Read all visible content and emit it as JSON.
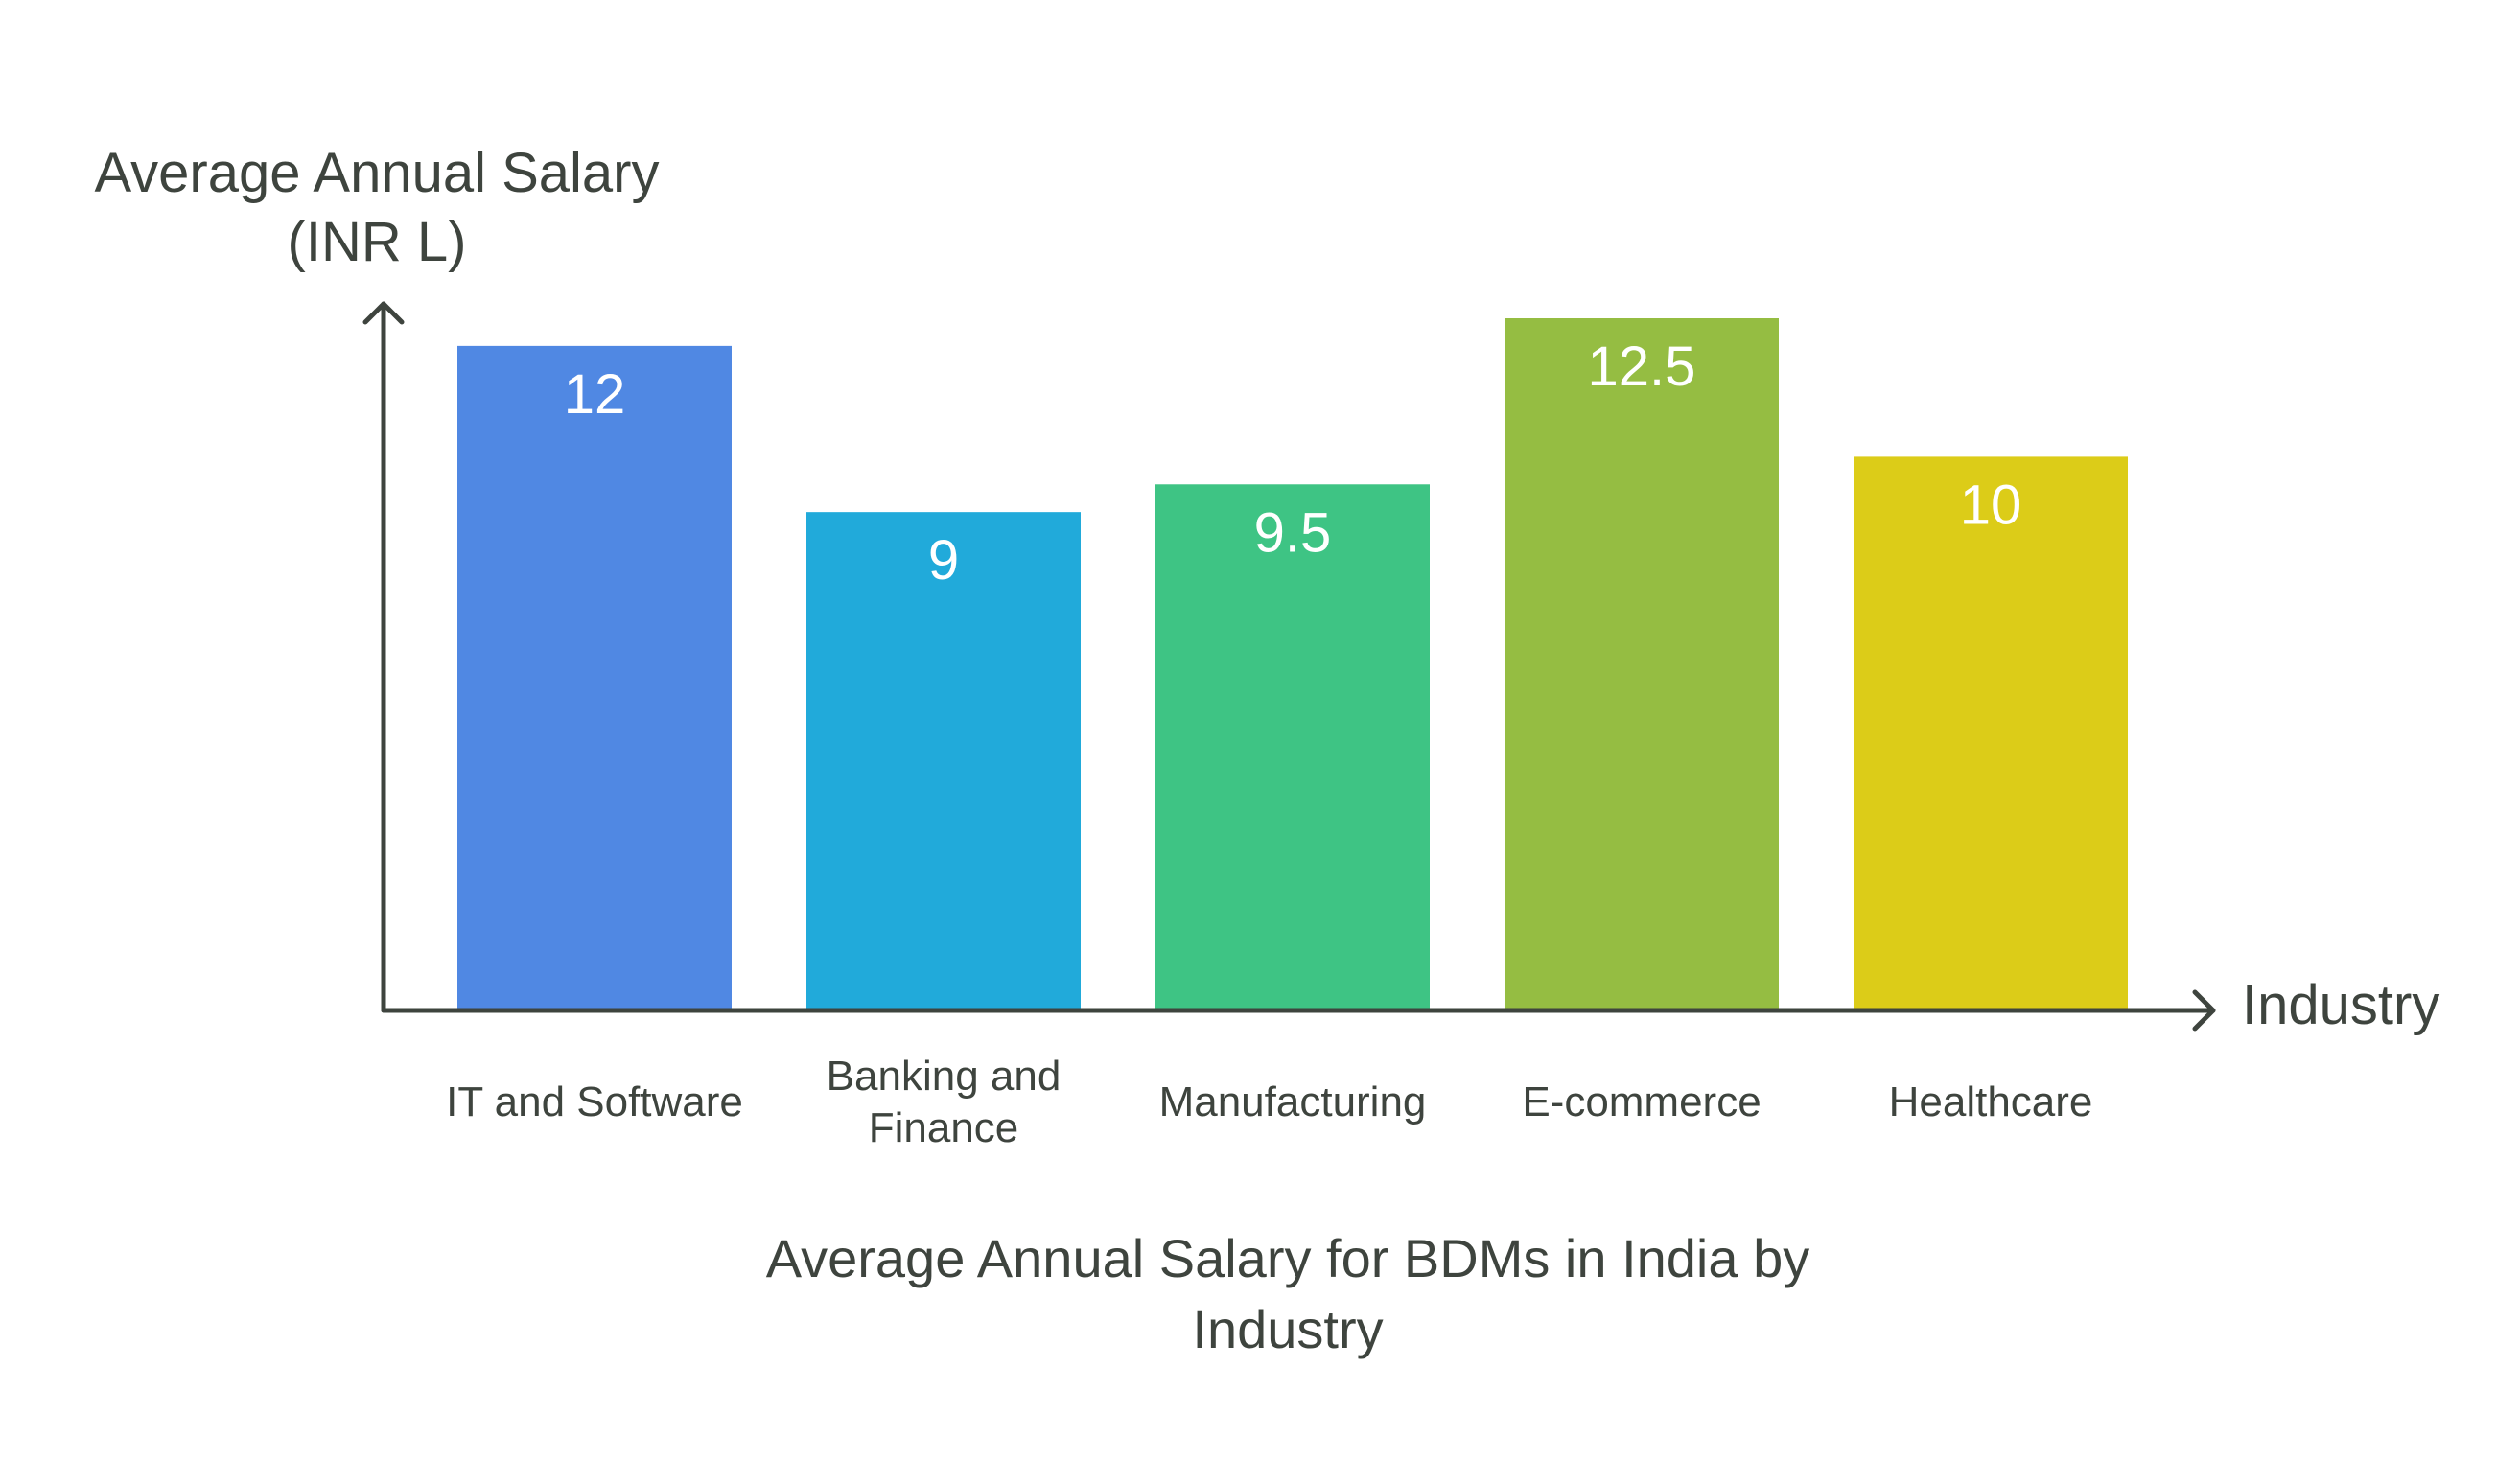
{
  "chart_data": {
    "type": "bar",
    "title": "Average Annual Salary for BDMs in India by Industry",
    "xlabel": "Industry",
    "ylabel": "Average Annual Salary (INR L)",
    "categories": [
      "IT and Software",
      "Banking and Finance",
      "Manufacturing",
      "E-commerce",
      "Healthcare"
    ],
    "values": [
      12,
      9,
      9.5,
      12.5,
      10
    ],
    "value_labels": [
      "12",
      "9",
      "9.5",
      "12.5",
      "10"
    ],
    "colors": [
      "#5088e3",
      "#21aada",
      "#3ec484",
      "#95bd42",
      "#dccc18"
    ],
    "ylim": [
      0,
      12.5
    ],
    "grid": false,
    "legend": "none"
  }
}
